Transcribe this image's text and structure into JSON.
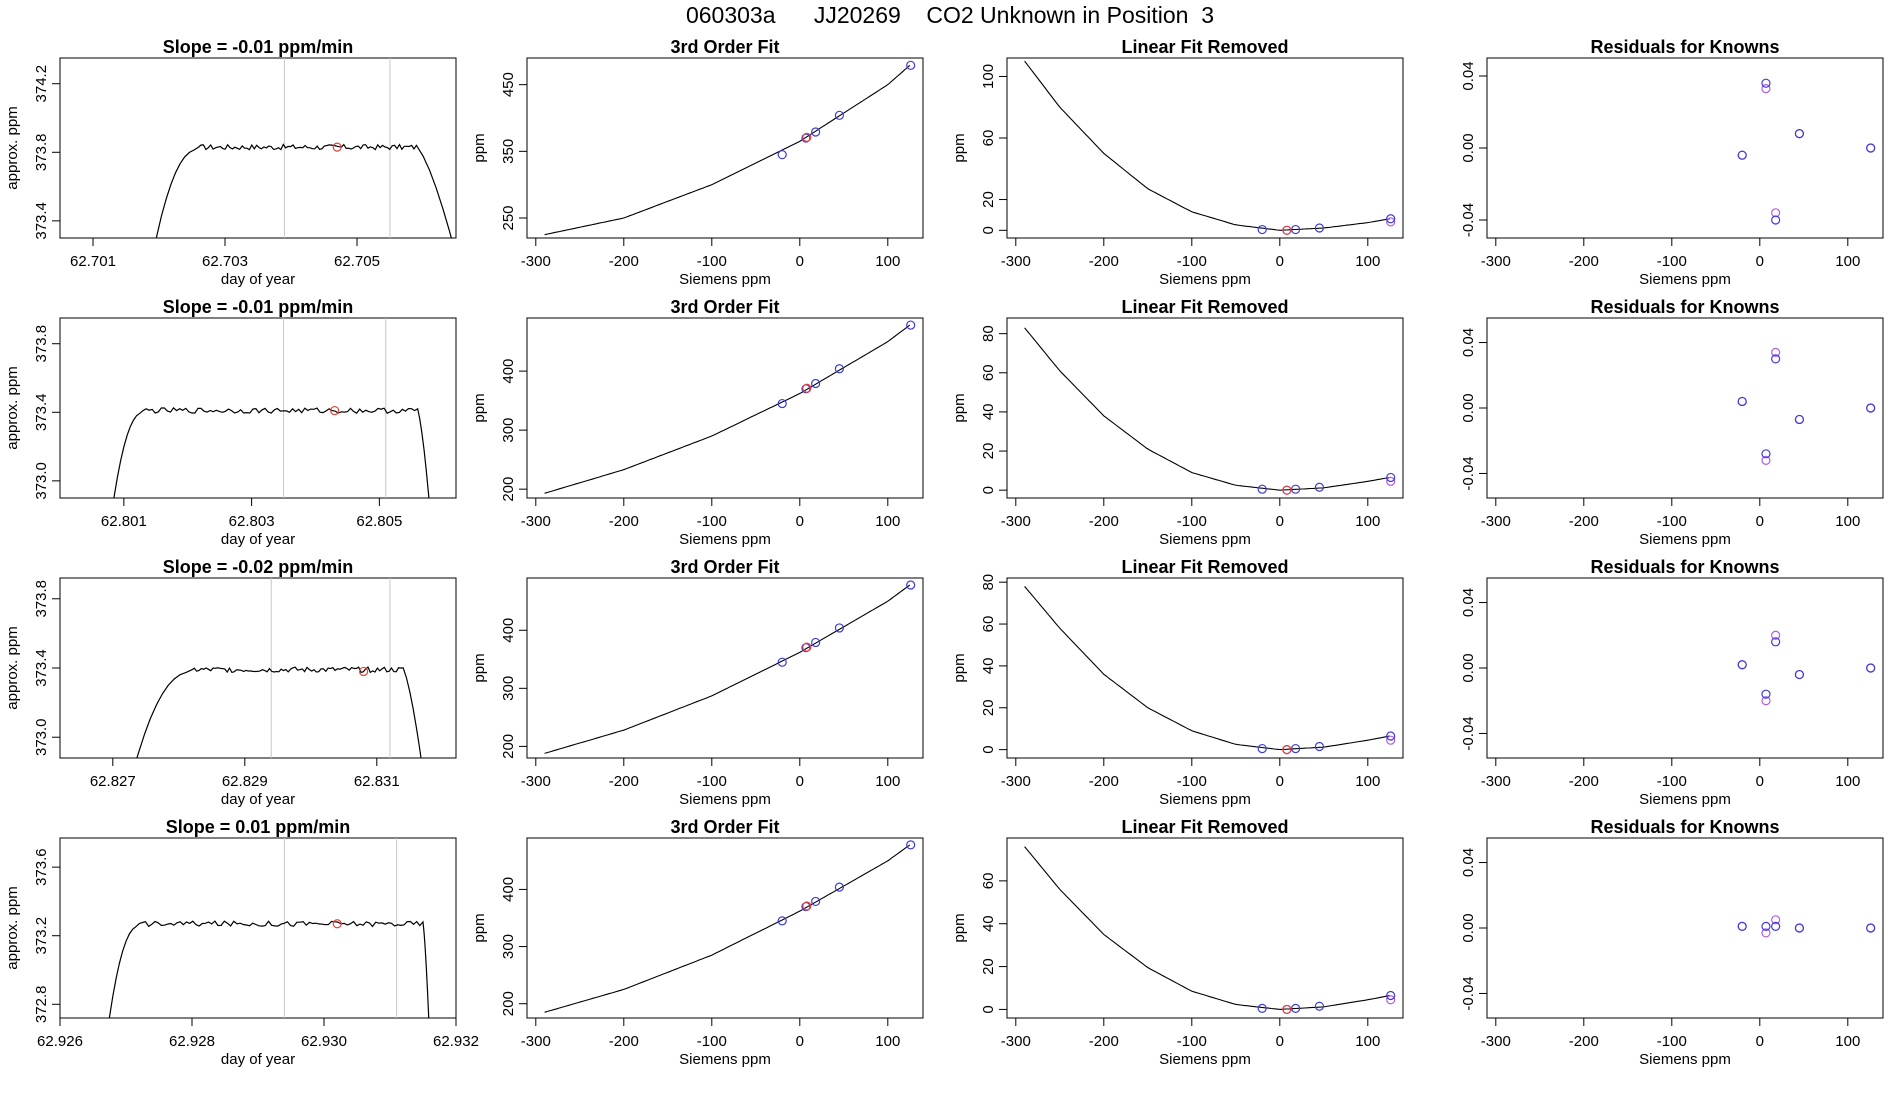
{
  "figure": {
    "title": "060303a      JJ20269    CO2 Unknown in Position  3"
  },
  "style": {
    "line_color": "#000000",
    "vline_color": "#c8c8c8",
    "marker_red": "#e8413a",
    "marker_blue": "#3b3bd8",
    "marker_purple": "#b05ce0"
  },
  "chart_data": [
    {
      "type": "line",
      "panel": "time",
      "title": "Slope =  -0.01  ppm/min",
      "xlabel": "day of year",
      "ylabel": "approx. ppm",
      "xlim": [
        62.7005,
        62.7065
      ],
      "ylim": [
        373.3,
        374.35
      ],
      "xticks": [
        62.701,
        62.703,
        62.705
      ],
      "xtick_labels": [
        "62.701",
        "62.703",
        "62.705"
      ],
      "yticks": [
        373.4,
        373.8,
        374.2
      ],
      "ytick_labels": [
        "373.4",
        "373.8",
        "374.2"
      ],
      "vlines": [
        62.7039,
        62.7055
      ],
      "rise": [
        62.7019,
        62.7026
      ],
      "fall": [
        62.7059,
        62.7065
      ],
      "level": 373.83,
      "base": 373.2,
      "marker": {
        "x": 62.7047,
        "y": 373.83
      }
    },
    {
      "type": "line",
      "panel": "fit",
      "title": "3rd Order Fit",
      "xlabel": "Siemens ppm",
      "ylabel": "ppm",
      "xlim": [
        -310,
        140
      ],
      "ylim": [
        220,
        490
      ],
      "xticks": [
        -300,
        -200,
        -100,
        0,
        100
      ],
      "xtick_labels": [
        "-300",
        "-200",
        "-100",
        "0",
        "100"
      ],
      "yticks": [
        250,
        350,
        450
      ],
      "ytick_labels": [
        "250",
        "350",
        "450"
      ],
      "curve_x": [
        -290,
        -200,
        -100,
        0,
        100,
        125
      ],
      "curve_y": [
        225,
        250,
        300,
        365,
        450,
        479
      ],
      "points_blue": [
        [
          -20,
          345
        ],
        [
          7,
          370
        ],
        [
          18,
          379
        ],
        [
          45,
          404
        ],
        [
          126,
          479
        ]
      ],
      "points_red": [
        [
          8,
          371
        ]
      ]
    },
    {
      "type": "line",
      "panel": "linear",
      "title": "Linear Fit Removed",
      "xlabel": "Siemens ppm",
      "ylabel": "ppm",
      "xlim": [
        -310,
        140
      ],
      "ylim": [
        -5,
        112
      ],
      "xticks": [
        -300,
        -200,
        -100,
        0,
        100
      ],
      "xtick_labels": [
        "-300",
        "-200",
        "-100",
        "0",
        "100"
      ],
      "yticks": [
        0,
        20,
        60,
        100
      ],
      "ytick_labels": [
        "0",
        "20",
        "60",
        "100"
      ],
      "curve_x": [
        -290,
        -250,
        -200,
        -150,
        -100,
        -50,
        0,
        50,
        100,
        125
      ],
      "curve_y": [
        110,
        80,
        50,
        27,
        12,
        3.5,
        0,
        1.5,
        5,
        7.5
      ],
      "points_blue": [
        [
          -20,
          0.5
        ],
        [
          8,
          0
        ],
        [
          18,
          0.5
        ],
        [
          45,
          1.5
        ],
        [
          126,
          7.5
        ]
      ],
      "points_purple": [
        [
          126,
          5.5
        ]
      ],
      "points_red": [
        [
          8,
          0
        ]
      ]
    },
    {
      "type": "scatter",
      "panel": "resid",
      "title": "Residuals for Knowns",
      "xlabel": "Siemens ppm",
      "ylabel": "",
      "xlim": [
        -310,
        140
      ],
      "ylim": [
        -0.05,
        0.05
      ],
      "xticks": [
        -300,
        -200,
        -100,
        0,
        100
      ],
      "xtick_labels": [
        "-300",
        "-200",
        "-100",
        "0",
        "100"
      ],
      "yticks": [
        -0.04,
        0.0,
        0.04
      ],
      "ytick_labels": [
        "-0.04",
        "0.00",
        "0.04"
      ],
      "points_blue": [
        [
          -20,
          -0.004
        ],
        [
          7,
          0.036
        ],
        [
          18,
          -0.04
        ],
        [
          45,
          0.008
        ],
        [
          126,
          0
        ]
      ],
      "points_purple": [
        [
          -20,
          -0.004
        ],
        [
          7,
          0.033
        ],
        [
          18,
          -0.036
        ],
        [
          45,
          0.008
        ],
        [
          126,
          0
        ]
      ]
    },
    {
      "type": "line",
      "panel": "time",
      "title": "Slope =  -0.01  ppm/min",
      "xlabel": "day of year",
      "ylabel": "approx. ppm",
      "xlim": [
        62.8,
        62.8062
      ],
      "ylim": [
        372.9,
        373.95
      ],
      "xticks": [
        62.801,
        62.803,
        62.805
      ],
      "xtick_labels": [
        "62.801",
        "62.803",
        "62.805"
      ],
      "yticks": [
        373.0,
        373.4,
        373.8
      ],
      "ytick_labels": [
        "373.0",
        "373.4",
        "373.8"
      ],
      "vlines": [
        62.8035,
        62.8051
      ],
      "rise": [
        62.8008,
        62.8013
      ],
      "fall": [
        62.8056,
        62.8058
      ],
      "level": 373.41,
      "base": 372.8,
      "marker": {
        "x": 62.8043,
        "y": 373.41
      }
    },
    {
      "type": "line",
      "panel": "fit",
      "title": "3rd Order Fit",
      "xlabel": "Siemens ppm",
      "ylabel": "ppm",
      "xlim": [
        -310,
        140
      ],
      "ylim": [
        185,
        490
      ],
      "xticks": [
        -300,
        -200,
        -100,
        0,
        100
      ],
      "xtick_labels": [
        "-300",
        "-200",
        "-100",
        "0",
        "100"
      ],
      "yticks": [
        200,
        300,
        400
      ],
      "ytick_labels": [
        "200",
        "300",
        "400"
      ],
      "curve_x": [
        -290,
        -200,
        -100,
        0,
        100,
        125
      ],
      "curve_y": [
        193,
        233,
        290,
        362,
        450,
        478
      ],
      "points_blue": [
        [
          -20,
          345
        ],
        [
          7,
          370
        ],
        [
          18,
          379
        ],
        [
          45,
          404
        ],
        [
          126,
          478
        ]
      ],
      "points_red": [
        [
          8,
          371
        ]
      ]
    },
    {
      "type": "line",
      "panel": "linear",
      "title": "Linear Fit Removed",
      "xlabel": "Siemens ppm",
      "ylabel": "ppm",
      "xlim": [
        -310,
        140
      ],
      "ylim": [
        -4,
        88
      ],
      "xticks": [
        -300,
        -200,
        -100,
        0,
        100
      ],
      "xtick_labels": [
        "-300",
        "-200",
        "-100",
        "0",
        "100"
      ],
      "yticks": [
        0,
        20,
        40,
        60,
        80
      ],
      "ytick_labels": [
        "0",
        "20",
        "40",
        "60",
        "80"
      ],
      "curve_x": [
        -290,
        -250,
        -200,
        -150,
        -100,
        -50,
        0,
        50,
        100,
        125
      ],
      "curve_y": [
        83,
        61,
        38,
        21,
        9,
        2.5,
        0,
        1.2,
        4.5,
        6.5
      ],
      "points_blue": [
        [
          -20,
          0.5
        ],
        [
          8,
          0
        ],
        [
          18,
          0.5
        ],
        [
          45,
          1.5
        ],
        [
          126,
          6.5
        ]
      ],
      "points_purple": [
        [
          126,
          4.5
        ]
      ],
      "points_red": [
        [
          8,
          0
        ]
      ]
    },
    {
      "type": "scatter",
      "panel": "resid",
      "title": "Residuals for Knowns",
      "xlabel": "Siemens ppm",
      "ylabel": "",
      "xlim": [
        -310,
        140
      ],
      "ylim": [
        -0.055,
        0.055
      ],
      "xticks": [
        -300,
        -200,
        -100,
        0,
        100
      ],
      "xtick_labels": [
        "-300",
        "-200",
        "-100",
        "0",
        "100"
      ],
      "yticks": [
        -0.04,
        0.0,
        0.04
      ],
      "ytick_labels": [
        "-0.04",
        "0.00",
        "0.04"
      ],
      "points_blue": [
        [
          -20,
          0.004
        ],
        [
          7,
          -0.028
        ],
        [
          18,
          0.03
        ],
        [
          45,
          -0.007
        ],
        [
          126,
          0
        ]
      ],
      "points_purple": [
        [
          -20,
          0.004
        ],
        [
          7,
          -0.032
        ],
        [
          18,
          0.034
        ],
        [
          45,
          -0.007
        ],
        [
          126,
          0
        ]
      ]
    },
    {
      "type": "line",
      "panel": "time",
      "title": "Slope =  -0.02  ppm/min",
      "xlabel": "day of year",
      "ylabel": "approx. ppm",
      "xlim": [
        62.8262,
        62.8322
      ],
      "ylim": [
        372.88,
        373.92
      ],
      "xticks": [
        62.827,
        62.829,
        62.831
      ],
      "xtick_labels": [
        "62.827",
        "62.829",
        "62.831"
      ],
      "yticks": [
        373.0,
        373.4,
        373.8
      ],
      "ytick_labels": [
        "373.0",
        "373.4",
        "373.8"
      ],
      "vlines": [
        62.8294,
        62.8312
      ],
      "rise": [
        62.8273,
        62.8282
      ],
      "fall": [
        62.8314,
        62.8317
      ],
      "level": 373.39,
      "base": 372.8,
      "marker": {
        "x": 62.8308,
        "y": 373.38
      }
    },
    {
      "type": "line",
      "panel": "fit",
      "title": "3rd Order Fit",
      "xlabel": "Siemens ppm",
      "ylabel": "ppm",
      "xlim": [
        -310,
        140
      ],
      "ylim": [
        180,
        490
      ],
      "xticks": [
        -300,
        -200,
        -100,
        0,
        100
      ],
      "xtick_labels": [
        "-300",
        "-200",
        "-100",
        "0",
        "100"
      ],
      "yticks": [
        200,
        300,
        400
      ],
      "ytick_labels": [
        "200",
        "300",
        "400"
      ],
      "curve_x": [
        -290,
        -200,
        -100,
        0,
        100,
        125
      ],
      "curve_y": [
        188,
        228,
        287,
        362,
        450,
        478
      ],
      "points_blue": [
        [
          -20,
          345
        ],
        [
          7,
          370
        ],
        [
          18,
          379
        ],
        [
          45,
          404
        ],
        [
          126,
          478
        ]
      ],
      "points_red": [
        [
          8,
          371
        ]
      ]
    },
    {
      "type": "line",
      "panel": "linear",
      "title": "Linear Fit Removed",
      "xlabel": "Siemens ppm",
      "ylabel": "ppm",
      "xlim": [
        -310,
        140
      ],
      "ylim": [
        -4,
        82
      ],
      "xticks": [
        -300,
        -200,
        -100,
        0,
        100
      ],
      "xtick_labels": [
        "-300",
        "-200",
        "-100",
        "0",
        "100"
      ],
      "yticks": [
        0,
        20,
        40,
        60,
        80
      ],
      "ytick_labels": [
        "0",
        "20",
        "40",
        "60",
        "80"
      ],
      "curve_x": [
        -290,
        -250,
        -200,
        -150,
        -100,
        -50,
        0,
        50,
        100,
        125
      ],
      "curve_y": [
        78,
        58,
        36,
        20,
        9,
        2.5,
        0,
        1.2,
        4.5,
        6.5
      ],
      "points_blue": [
        [
          -20,
          0.5
        ],
        [
          8,
          0
        ],
        [
          18,
          0.5
        ],
        [
          45,
          1.5
        ],
        [
          126,
          6.5
        ]
      ],
      "points_purple": [
        [
          126,
          4.5
        ]
      ],
      "points_red": [
        [
          8,
          0
        ]
      ]
    },
    {
      "type": "scatter",
      "panel": "resid",
      "title": "Residuals for Knowns",
      "xlabel": "Siemens ppm",
      "ylabel": "",
      "xlim": [
        -310,
        140
      ],
      "ylim": [
        -0.055,
        0.055
      ],
      "xticks": [
        -300,
        -200,
        -100,
        0,
        100
      ],
      "xtick_labels": [
        "-300",
        "-200",
        "-100",
        "0",
        "100"
      ],
      "yticks": [
        -0.04,
        0.0,
        0.04
      ],
      "ytick_labels": [
        "-0.04",
        "0.00",
        "0.04"
      ],
      "points_blue": [
        [
          -20,
          0.002
        ],
        [
          7,
          -0.016
        ],
        [
          18,
          0.016
        ],
        [
          45,
          -0.004
        ],
        [
          126,
          0
        ]
      ],
      "points_purple": [
        [
          -20,
          0.002
        ],
        [
          7,
          -0.02
        ],
        [
          18,
          0.02
        ],
        [
          45,
          -0.004
        ],
        [
          126,
          0
        ]
      ]
    },
    {
      "type": "line",
      "panel": "time",
      "title": "Slope =  0.01  ppm/min",
      "xlabel": "day of year",
      "ylabel": "approx. ppm",
      "xlim": [
        62.926,
        62.932
      ],
      "ylim": [
        372.72,
        373.77
      ],
      "xticks": [
        62.926,
        62.928,
        62.93,
        62.932
      ],
      "xtick_labels": [
        "62.926",
        "62.928",
        "62.930",
        "62.932"
      ],
      "yticks": [
        372.8,
        373.2,
        373.6
      ],
      "ytick_labels": [
        "372.8",
        "373.2",
        "373.6"
      ],
      "vlines": [
        62.9294,
        62.9311
      ],
      "rise": [
        62.9267,
        62.9272
      ],
      "fall": [
        62.9315,
        62.9316
      ],
      "level": 373.27,
      "base": 372.6,
      "marker": {
        "x": 62.9302,
        "y": 373.27
      }
    },
    {
      "type": "line",
      "panel": "fit",
      "title": "3rd Order Fit",
      "xlabel": "Siemens ppm",
      "ylabel": "ppm",
      "xlim": [
        -310,
        140
      ],
      "ylim": [
        175,
        490
      ],
      "xticks": [
        -300,
        -200,
        -100,
        0,
        100
      ],
      "xtick_labels": [
        "-300",
        "-200",
        "-100",
        "0",
        "100"
      ],
      "yticks": [
        200,
        300,
        400
      ],
      "ytick_labels": [
        "200",
        "300",
        "400"
      ],
      "curve_x": [
        -290,
        -200,
        -100,
        0,
        100,
        125
      ],
      "curve_y": [
        185,
        225,
        285,
        362,
        450,
        478
      ],
      "points_blue": [
        [
          -20,
          345
        ],
        [
          7,
          370
        ],
        [
          18,
          379
        ],
        [
          45,
          404
        ],
        [
          126,
          478
        ]
      ],
      "points_red": [
        [
          8,
          371
        ]
      ]
    },
    {
      "type": "line",
      "panel": "linear",
      "title": "Linear Fit Removed",
      "xlabel": "Siemens ppm",
      "ylabel": "ppm",
      "xlim": [
        -310,
        140
      ],
      "ylim": [
        -4,
        80
      ],
      "xticks": [
        -300,
        -200,
        -100,
        0,
        100
      ],
      "xtick_labels": [
        "-300",
        "-200",
        "-100",
        "0",
        "100"
      ],
      "yticks": [
        0,
        20,
        40,
        60
      ],
      "ytick_labels": [
        "0",
        "20",
        "40",
        "60"
      ],
      "curve_x": [
        -290,
        -250,
        -200,
        -150,
        -100,
        -50,
        0,
        50,
        100,
        125
      ],
      "curve_y": [
        76,
        56,
        35,
        19.5,
        8.5,
        2.3,
        0,
        1.2,
        4.5,
        6.5
      ],
      "points_blue": [
        [
          -20,
          0.5
        ],
        [
          8,
          0
        ],
        [
          18,
          0.5
        ],
        [
          45,
          1.5
        ],
        [
          126,
          6.5
        ]
      ],
      "points_purple": [
        [
          126,
          4.5
        ]
      ],
      "points_red": [
        [
          8,
          0
        ]
      ]
    },
    {
      "type": "scatter",
      "panel": "resid",
      "title": "Residuals for Knowns",
      "xlabel": "Siemens ppm",
      "ylabel": "",
      "xlim": [
        -310,
        140
      ],
      "ylim": [
        -0.055,
        0.055
      ],
      "xticks": [
        -300,
        -200,
        -100,
        0,
        100
      ],
      "xtick_labels": [
        "-300",
        "-200",
        "-100",
        "0",
        "100"
      ],
      "yticks": [
        -0.04,
        0.0,
        0.04
      ],
      "ytick_labels": [
        "-0.04",
        "0.00",
        "0.04"
      ],
      "points_blue": [
        [
          -20,
          0.001
        ],
        [
          7,
          0.001
        ],
        [
          18,
          0.001
        ],
        [
          45,
          0
        ],
        [
          126,
          0
        ]
      ],
      "points_purple": [
        [
          -20,
          0.001
        ],
        [
          7,
          -0.003
        ],
        [
          18,
          0.005
        ],
        [
          45,
          0
        ],
        [
          126,
          0
        ]
      ]
    }
  ]
}
